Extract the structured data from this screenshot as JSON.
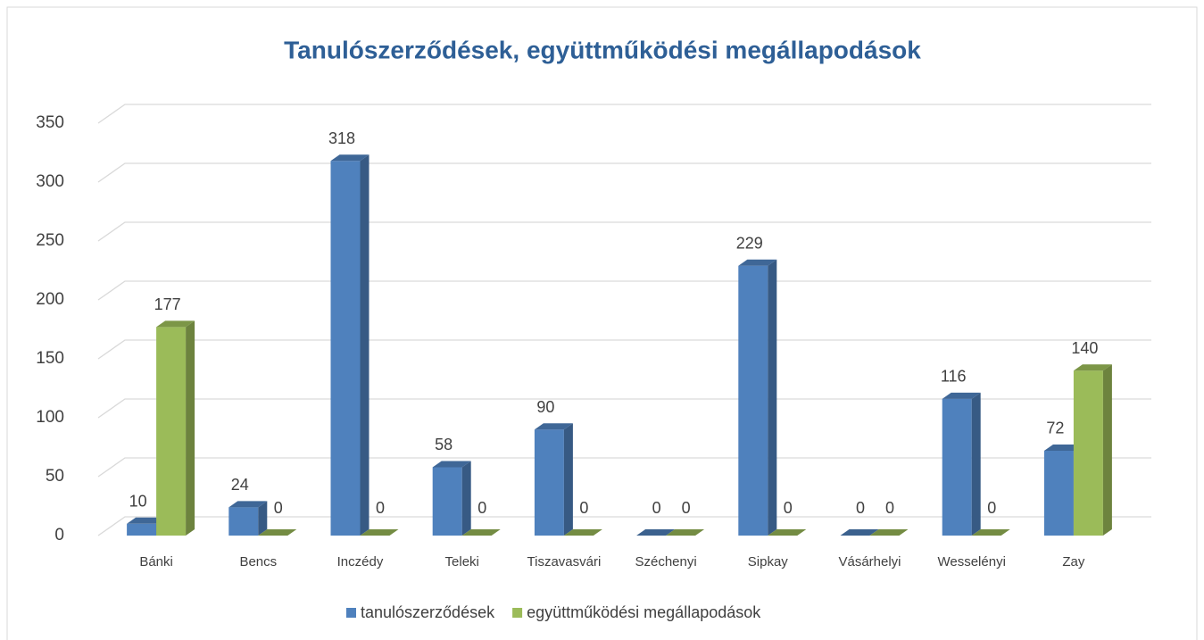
{
  "chart_data": {
    "type": "bar3d",
    "title": "Tanulószerződések, együttműködési megállapodások",
    "categories": [
      "Bánki",
      "Bencs",
      "Inczédy",
      "Teleki",
      "Tiszavasvári",
      "Széchenyi",
      "Sipkay",
      "Vásárhelyi",
      "Wesselényi",
      "Zay"
    ],
    "series": [
      {
        "name": "tanulószerződések",
        "color": "#4f81bd",
        "values": [
          10,
          24,
          318,
          58,
          90,
          0,
          229,
          0,
          116,
          72
        ]
      },
      {
        "name": "együttműködési megállapodások",
        "color": "#9bbb59",
        "values": [
          177,
          0,
          0,
          0,
          0,
          0,
          0,
          0,
          0,
          140
        ]
      }
    ],
    "ylim": [
      0,
      350
    ],
    "yticks": [
      0,
      50,
      100,
      150,
      200,
      250,
      300,
      350
    ],
    "grid": true,
    "legend": "bottom"
  }
}
